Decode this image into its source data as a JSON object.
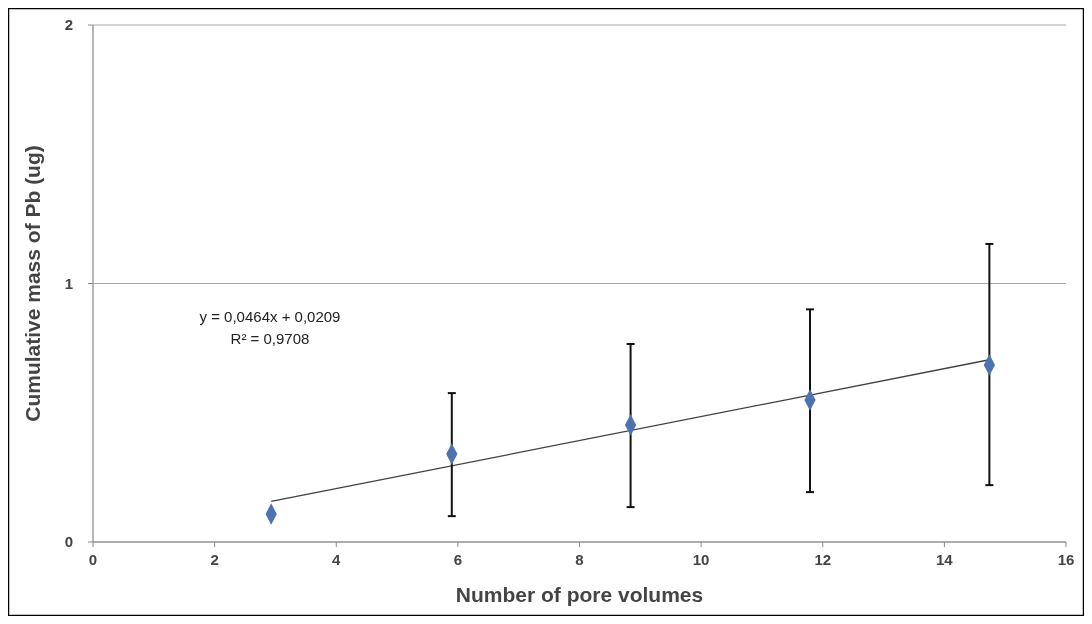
{
  "chart_data": {
    "type": "scatter",
    "xlabel": "Number of pore volumes",
    "ylabel": "Cumulative mass of Pb (ug)",
    "xlim": [
      0,
      16
    ],
    "xticks": [
      0,
      2,
      4,
      6,
      8,
      10,
      12,
      14,
      16
    ],
    "ylim": [
      0,
      2
    ],
    "yticks": [
      0,
      1,
      2
    ],
    "grid": "y",
    "annotations": [
      "y = 0,0464x + 0,0209",
      "R² = 0,9708"
    ],
    "series": [
      {
        "marker": "diamond",
        "color": "#4f72b0",
        "x": [
          2.93,
          5.9,
          8.84,
          11.79,
          14.74
        ],
        "values": [
          0.108,
          0.34,
          0.453,
          0.549,
          0.685
        ],
        "errors": [
          null,
          [
            0.1,
            0.576
          ],
          [
            0.135,
            0.766
          ],
          [
            0.193,
            0.9
          ],
          [
            0.22,
            1.153
          ]
        ]
      },
      {
        "type": "line",
        "color": "#404040",
        "x": [
          2.93,
          14.74
        ],
        "values": [
          0.157,
          0.705
        ]
      }
    ]
  }
}
